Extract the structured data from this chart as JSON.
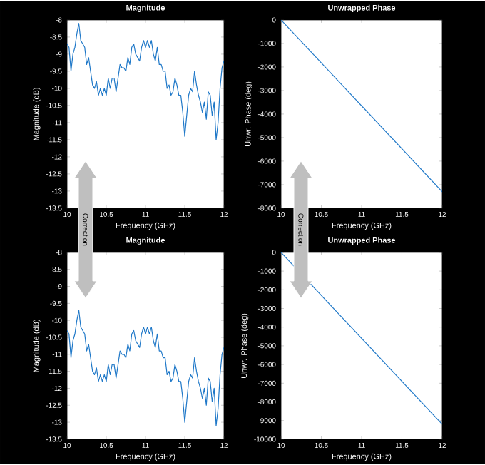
{
  "chart_data": [
    {
      "type": "line",
      "title": "Magnitude",
      "xlabel": "Frequency (GHz)",
      "ylabel": "Magnitude (dB)",
      "annotations": [
        "Correction"
      ],
      "x": [
        10,
        10.025,
        10.05,
        10.075,
        10.1,
        10.125,
        10.15,
        10.175,
        10.2,
        10.225,
        10.25,
        10.275,
        10.3,
        10.325,
        10.35,
        10.375,
        10.4,
        10.425,
        10.45,
        10.475,
        10.5,
        10.525,
        10.55,
        10.575,
        10.6,
        10.625,
        10.65,
        10.675,
        10.7,
        10.725,
        10.75,
        10.775,
        10.8,
        10.825,
        10.85,
        10.875,
        10.9,
        10.925,
        10.95,
        10.975,
        11,
        11.025,
        11.05,
        11.075,
        11.1,
        11.125,
        11.15,
        11.175,
        11.2,
        11.225,
        11.25,
        11.275,
        11.3,
        11.325,
        11.35,
        11.375,
        11.4,
        11.425,
        11.45,
        11.475,
        11.5,
        11.525,
        11.55,
        11.575,
        11.6,
        11.625,
        11.65,
        11.675,
        11.7,
        11.725,
        11.75,
        11.775,
        11.8,
        11.825,
        11.85,
        11.875,
        11.9,
        11.925,
        11.95,
        11.975,
        12
      ],
      "series": [
        {
          "color": "#1f78c8",
          "values": [
            -8.7,
            -8.8,
            -9.5,
            -9.0,
            -8.8,
            -8.4,
            -8.1,
            -8.6,
            -8.7,
            -8.8,
            -9.3,
            -9.1,
            -9.5,
            -9.9,
            -10.0,
            -9.8,
            -10.2,
            -10.0,
            -10.2,
            -10.0,
            -10.2,
            -9.7,
            -10.0,
            -9.7,
            -9.7,
            -10.1,
            -9.7,
            -9.3,
            -9.4,
            -9.4,
            -9.5,
            -9.1,
            -9.3,
            -8.8,
            -8.7,
            -9.0,
            -9.1,
            -9.2,
            -8.8,
            -8.6,
            -8.8,
            -8.6,
            -8.8,
            -8.6,
            -9.0,
            -9.2,
            -8.8,
            -9.3,
            -9.3,
            -9.5,
            -9.5,
            -10.0,
            -9.9,
            -10.2,
            -10.1,
            -9.7,
            -9.9,
            -10.2,
            -10.2,
            -10.7,
            -11.4,
            -10.8,
            -10.2,
            -10.0,
            -10.1,
            -9.5,
            -9.9,
            -10.2,
            -10.4,
            -10.7,
            -10.4,
            -10.9,
            -10.1,
            -10.2,
            -10.8,
            -10.4,
            -11.5,
            -11.0,
            -10.0,
            -9.4,
            -9.2
          ]
        }
      ],
      "xlim": [
        10,
        12
      ],
      "ylim": [
        -13.5,
        -8
      ],
      "xticks": [
        10,
        10.5,
        11,
        11.5,
        12
      ],
      "yticks": [
        -8,
        -8.5,
        -9,
        -9.5,
        -10,
        -10.5,
        -11,
        -11.5,
        -12,
        -12.5,
        -13,
        -13.5
      ]
    },
    {
      "type": "line",
      "title": "Unwrapped Phase",
      "xlabel": "Frequency (GHz)",
      "ylabel": "Unwr. Phase (deg)",
      "annotations": [
        "Correction"
      ],
      "x": [
        10,
        12
      ],
      "series": [
        {
          "color": "#1f78c8",
          "values": [
            0,
            -7300
          ]
        }
      ],
      "xlim": [
        10,
        12
      ],
      "ylim": [
        -8000,
        0
      ],
      "xticks": [
        10,
        10.5,
        11,
        11.5,
        12
      ],
      "yticks": [
        0,
        -1000,
        -2000,
        -3000,
        -4000,
        -5000,
        -6000,
        -7000,
        -8000
      ]
    },
    {
      "type": "line",
      "title": "Magnitude",
      "xlabel": "Frequency (GHz)",
      "ylabel": "Magnitude (dB)",
      "x": [
        10,
        10.025,
        10.05,
        10.075,
        10.1,
        10.125,
        10.15,
        10.175,
        10.2,
        10.225,
        10.25,
        10.275,
        10.3,
        10.325,
        10.35,
        10.375,
        10.4,
        10.425,
        10.45,
        10.475,
        10.5,
        10.525,
        10.55,
        10.575,
        10.6,
        10.625,
        10.65,
        10.675,
        10.7,
        10.725,
        10.75,
        10.775,
        10.8,
        10.825,
        10.85,
        10.875,
        10.9,
        10.925,
        10.95,
        10.975,
        11,
        11.025,
        11.05,
        11.075,
        11.1,
        11.125,
        11.15,
        11.175,
        11.2,
        11.225,
        11.25,
        11.275,
        11.3,
        11.325,
        11.35,
        11.375,
        11.4,
        11.425,
        11.45,
        11.475,
        11.5,
        11.525,
        11.55,
        11.575,
        11.6,
        11.625,
        11.65,
        11.675,
        11.7,
        11.725,
        11.75,
        11.775,
        11.8,
        11.825,
        11.85,
        11.875,
        11.9,
        11.925,
        11.95,
        11.975,
        12
      ],
      "series": [
        {
          "color": "#1f78c8",
          "values": [
            -10.3,
            -10.4,
            -11.1,
            -10.6,
            -10.4,
            -10.0,
            -9.7,
            -10.2,
            -10.3,
            -10.4,
            -10.9,
            -10.7,
            -11.1,
            -11.5,
            -11.6,
            -11.4,
            -11.8,
            -11.6,
            -11.8,
            -11.6,
            -11.8,
            -11.3,
            -11.6,
            -11.3,
            -11.3,
            -11.7,
            -11.3,
            -10.9,
            -11.0,
            -11.0,
            -11.1,
            -10.7,
            -10.9,
            -10.4,
            -10.3,
            -10.6,
            -10.7,
            -10.8,
            -10.4,
            -10.2,
            -10.4,
            -10.2,
            -10.4,
            -10.2,
            -10.6,
            -10.8,
            -10.4,
            -10.9,
            -10.9,
            -11.1,
            -11.1,
            -11.6,
            -11.5,
            -11.8,
            -11.7,
            -11.3,
            -11.5,
            -11.8,
            -11.8,
            -12.3,
            -13.0,
            -12.4,
            -11.8,
            -11.6,
            -11.7,
            -11.1,
            -11.5,
            -11.8,
            -12.0,
            -12.3,
            -12.0,
            -12.5,
            -11.7,
            -11.8,
            -12.4,
            -12.0,
            -13.1,
            -12.6,
            -11.6,
            -11.0,
            -10.8
          ]
        }
      ],
      "xlim": [
        10,
        12
      ],
      "ylim": [
        -13.5,
        -8
      ],
      "xticks": [
        10,
        10.5,
        11,
        11.5,
        12
      ],
      "yticks": [
        -8,
        -8.5,
        -9,
        -9.5,
        -10,
        -10.5,
        -11,
        -11.5,
        -12,
        -12.5,
        -13,
        -13.5
      ]
    },
    {
      "type": "line",
      "title": "Unwrapped Phase",
      "xlabel": "Frequency (GHz)",
      "ylabel": "Unwr. Phase (deg)",
      "x": [
        10,
        12
      ],
      "series": [
        {
          "color": "#1f78c8",
          "values": [
            0,
            -9200
          ]
        }
      ],
      "xlim": [
        10,
        12
      ],
      "ylim": [
        -10000,
        0
      ],
      "xticks": [
        10,
        10.5,
        11,
        11.5,
        12
      ],
      "yticks": [
        0,
        -1000,
        -2000,
        -3000,
        -4000,
        -5000,
        -6000,
        -7000,
        -8000,
        -9000,
        -10000
      ]
    }
  ]
}
